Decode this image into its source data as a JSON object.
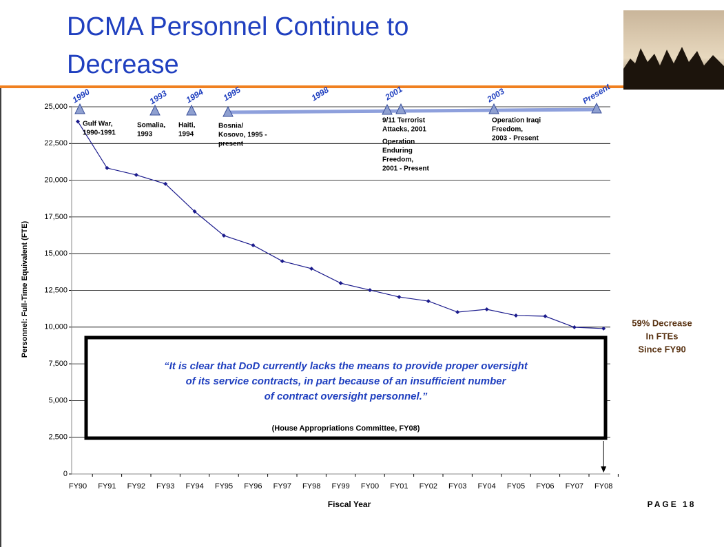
{
  "chart_data": {
    "type": "line",
    "title": [
      "DCMA Personnel Continue to",
      "Decrease"
    ],
    "x_label": "Fiscal Year",
    "y_label": "Personnel: Full-Time Equivalent (FTE)",
    "categories": [
      "FY90",
      "FY91",
      "FY92",
      "FY93",
      "FY94",
      "FY95",
      "FY96",
      "FY97",
      "FY98",
      "FY99",
      "FY00",
      "FY01",
      "FY02",
      "FY03",
      "FY04",
      "FY05",
      "FY06",
      "FY07",
      "FY08"
    ],
    "series": [
      {
        "name": "FTE",
        "color": "#1a1a8c",
        "values": [
          24000,
          20830,
          20360,
          19750,
          17870,
          16230,
          15570,
          14490,
          13980,
          12990,
          12520,
          12050,
          11770,
          11020,
          11210,
          10790,
          10740,
          9990,
          9900
        ]
      }
    ],
    "ylim": [
      0,
      25000
    ],
    "yticks": [
      0,
      {
        "value": 2500,
        "label": "2,500"
      },
      {
        "value": 5000,
        "label": "5,000"
      },
      {
        "value": 7500,
        "label": "7,500"
      },
      {
        "value": 10000,
        "label": "10,000"
      },
      {
        "value": 12500,
        "label": "12,500"
      },
      {
        "value": 15000,
        "label": "15,000"
      },
      {
        "value": 17500,
        "label": "17,500"
      },
      {
        "value": 20000,
        "label": "20,000"
      },
      {
        "value": 22500,
        "label": "22,500"
      },
      {
        "value": 25000,
        "label": "25,000"
      }
    ],
    "grid": true,
    "timeline": [
      "1990",
      "1993",
      "1994",
      "1995",
      "1998",
      "2001",
      "2003",
      "Present"
    ],
    "events": [
      [
        "Gulf War,",
        "1990-1991"
      ],
      [
        "Somalia,",
        "1993"
      ],
      [
        "Haiti,",
        "1994"
      ],
      [
        "Bosnia/",
        "Kosovo, 1995 -",
        "present"
      ],
      [
        "9/11 Terrorist",
        "Attacks, 2001"
      ],
      [
        "Operation",
        "Enduring",
        "Freedom,",
        "2001 - Present"
      ],
      [
        "Operation Iraqi",
        "Freedom,",
        "2003 - Present"
      ]
    ],
    "quote": [
      "“It is clear that DoD currently lacks the means to provide proper oversight",
      "of its service contracts, in part because of an insufficient number",
      "of contract oversight personnel.”"
    ],
    "source": "(House Appropriations Committee, FY08)",
    "callout": [
      "59% Decrease",
      "In FTEs",
      "Since FY90"
    ],
    "page": "PAGE 18"
  }
}
